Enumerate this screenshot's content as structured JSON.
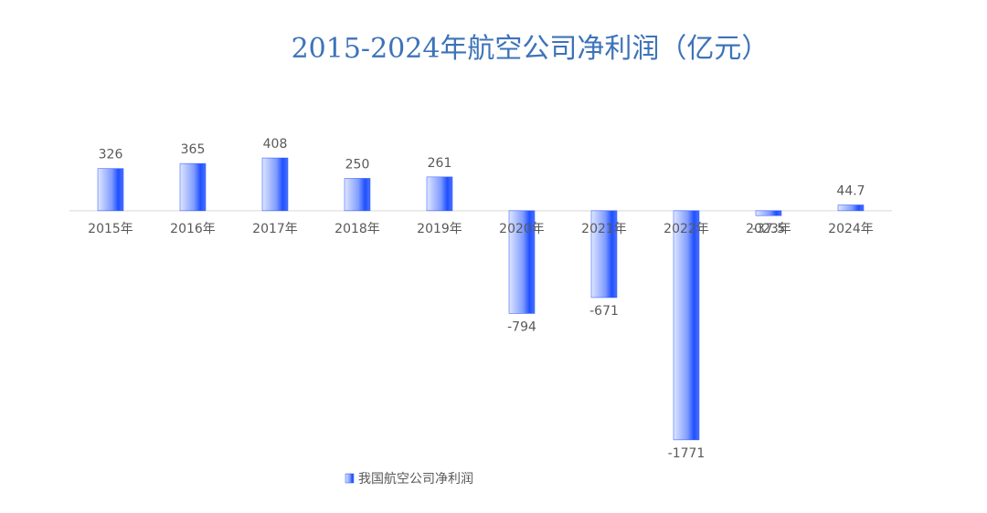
{
  "chart_data": {
    "type": "bar",
    "title": "2015-2024年航空公司净利润（亿元）",
    "categories": [
      "2015年",
      "2016年",
      "2017年",
      "2018年",
      "2019年",
      "2020年",
      "2021年",
      "2022年",
      "2023年",
      "2024年"
    ],
    "series": [
      {
        "name": "我国航空公司净利润",
        "color": "#1f4fff",
        "values": [
          326,
          365,
          408,
          250,
          261,
          -794,
          -671,
          -1771,
          -37.5,
          44.7
        ]
      }
    ],
    "ylim": [
      -1800,
      500
    ]
  }
}
